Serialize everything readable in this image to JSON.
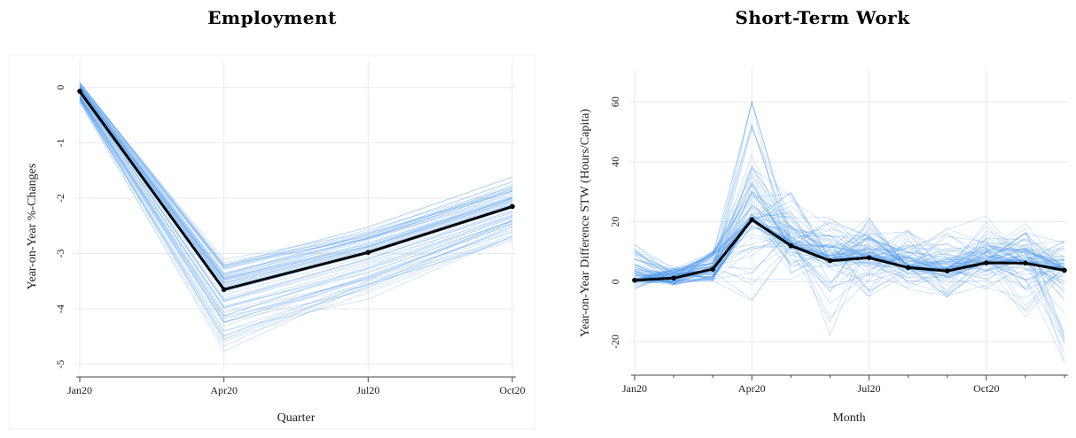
{
  "chart_data": [
    {
      "type": "line",
      "title": "Employment",
      "xlabel": "Quarter",
      "ylabel": "Year-on-Year %-Changes",
      "x": [
        "Jan20",
        "Apr20",
        "Jul20",
        "Oct20"
      ],
      "xticks": [
        "Jan20",
        "Apr20",
        "Jul20",
        "Oct20"
      ],
      "yticks": [
        "0",
        "-1",
        "-2",
        "-3",
        "-4",
        "-5"
      ],
      "ylim": [
        -5.1,
        0.3
      ],
      "series": [
        {
          "values": [
            -0.07,
            -3.65,
            -2.98,
            -2.15
          ]
        }
      ],
      "ensemble_bounds": {
        "low": [
          -0.35,
          -5.0,
          -4.0,
          -2.95
        ],
        "high": [
          0.15,
          -2.95,
          -2.4,
          -1.5
        ]
      },
      "grid": true,
      "legend": "none",
      "colors": {
        "mean": "#000000",
        "ensemble": "#3d8fe8"
      }
    },
    {
      "type": "line",
      "title": "Short-Term Work",
      "xlabel": "Month",
      "ylabel": "Year-on-Year Difference STW (Hours/Capita)",
      "x": [
        "Jan20",
        "Feb20",
        "Mar20",
        "Apr20",
        "May20",
        "Jun20",
        "Jul20",
        "Aug20",
        "Sep20",
        "Oct20",
        "Nov20",
        "Dec20"
      ],
      "xticks": [
        "Jan20",
        "Apr20",
        "Jul20",
        "Oct20"
      ],
      "yticks": [
        "60",
        "40",
        "20",
        "0",
        "-20"
      ],
      "ylim": [
        -30,
        68
      ],
      "series": [
        {
          "values": [
            0.5,
            1.2,
            4.2,
            20.7,
            12.0,
            7.0,
            8.0,
            4.7,
            3.6,
            6.3,
            6.2,
            3.8
          ]
        }
      ],
      "ensemble_bounds": {
        "low": [
          -3,
          -15,
          -5,
          -8,
          0,
          -18,
          -7,
          -5,
          -6,
          -3,
          -12,
          -28
        ],
        "high": [
          13,
          30,
          46,
          64,
          32,
          22,
          24,
          20,
          18,
          22,
          20,
          14
        ]
      },
      "grid": true,
      "legend": "none",
      "colors": {
        "mean": "#000000",
        "ensemble": "#3d8fe8"
      }
    }
  ]
}
